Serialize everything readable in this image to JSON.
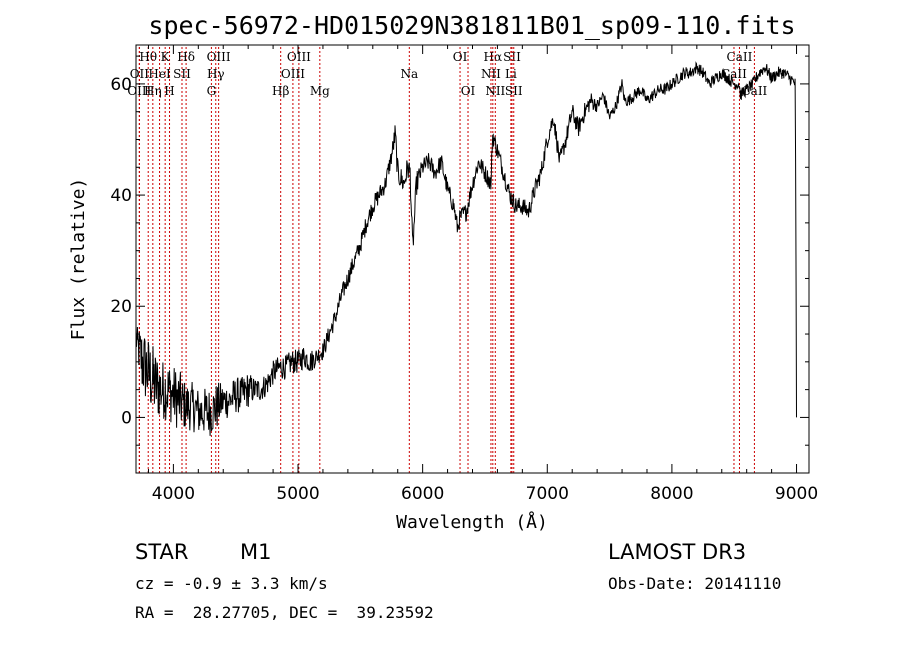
{
  "chart_data": {
    "type": "line",
    "title": "spec-56972-HD015029N381811B01_sp09-110.fits",
    "xlabel": "Wavelength (Å)",
    "ylabel": "Flux (relative)",
    "xlim": [
      3700,
      9100
    ],
    "ylim": [
      -10,
      67
    ],
    "xticks": [
      4000,
      5000,
      6000,
      7000,
      8000,
      9000
    ],
    "yticks": [
      0,
      20,
      40,
      60
    ],
    "grid": false,
    "series": [
      {
        "name": "spectrum",
        "x": [
          3700,
          3750,
          3800,
          3850,
          3900,
          3950,
          4000,
          4050,
          4100,
          4150,
          4200,
          4250,
          4300,
          4350,
          4400,
          4450,
          4500,
          4550,
          4600,
          4650,
          4700,
          4750,
          4800,
          4850,
          4900,
          4950,
          5000,
          5050,
          5100,
          5150,
          5200,
          5250,
          5300,
          5350,
          5400,
          5450,
          5500,
          5550,
          5600,
          5650,
          5700,
          5750,
          5780,
          5800,
          5850,
          5880,
          5900,
          5920,
          5950,
          6000,
          6050,
          6100,
          6150,
          6200,
          6250,
          6280,
          6300,
          6350,
          6400,
          6450,
          6500,
          6550,
          6560,
          6600,
          6650,
          6700,
          6750,
          6800,
          6850,
          6900,
          6950,
          7000,
          7050,
          7100,
          7150,
          7200,
          7250,
          7300,
          7350,
          7400,
          7450,
          7500,
          7550,
          7600,
          7620,
          7650,
          7700,
          7750,
          7800,
          7850,
          7900,
          7950,
          8000,
          8050,
          8100,
          8150,
          8200,
          8250,
          8300,
          8350,
          8400,
          8450,
          8500,
          8540,
          8550,
          8600,
          8650,
          8700,
          8750,
          8800,
          8850,
          8900,
          8950,
          8990,
          9000
        ],
        "y": [
          14,
          10,
          8,
          6,
          5,
          5,
          4,
          3,
          2,
          2,
          1,
          1,
          1,
          2,
          3,
          3,
          4,
          4,
          5,
          5,
          5,
          6,
          8,
          9,
          9,
          10,
          10,
          11,
          10,
          11,
          12,
          15,
          18,
          22,
          25,
          28,
          31,
          35,
          38,
          40,
          42,
          47,
          51,
          44,
          42,
          45,
          44,
          30,
          42,
          45,
          46,
          44,
          46,
          41,
          38,
          34,
          36,
          37,
          42,
          46,
          44,
          42,
          51,
          48,
          44,
          40,
          38,
          38,
          37,
          41,
          44,
          50,
          54,
          46,
          50,
          55,
          52,
          55,
          57,
          56,
          58,
          54,
          56,
          60,
          57,
          57,
          58,
          59,
          57,
          58,
          59,
          59,
          60,
          61,
          62,
          62,
          63,
          62,
          60,
          61,
          62,
          61,
          60,
          60,
          58,
          59,
          60,
          62,
          63,
          61,
          62,
          62,
          61,
          60,
          0
        ],
        "jitter": [
          2,
          6,
          6,
          6,
          5,
          5,
          5,
          5,
          4,
          4,
          4,
          4,
          4,
          4,
          3,
          3,
          3,
          3,
          3,
          2,
          2,
          2,
          2,
          2,
          2,
          2,
          2,
          2,
          2,
          1.5,
          1.5,
          1.5,
          1.5,
          1.5,
          1.5,
          1.5,
          1.5,
          1.5,
          1.5,
          1.5,
          1.5,
          1.5,
          2,
          2,
          2,
          2,
          2,
          2,
          2,
          1.5,
          1.5,
          1.5,
          1.5,
          1.5,
          1.5,
          1.5,
          1.5,
          1.5,
          1.5,
          1.5,
          1.5,
          1.5,
          1.5,
          1.5,
          1.5,
          1.5,
          1.5,
          1.5,
          1.5,
          1.5,
          1.5,
          1.5,
          1.5,
          1.5,
          1.5,
          1.5,
          1.5,
          1.5,
          1.5,
          1,
          1,
          1,
          1,
          1,
          1,
          1,
          1,
          1,
          1,
          1,
          1,
          1,
          1,
          1,
          1,
          1,
          1,
          1,
          1,
          1,
          1,
          1,
          1,
          1,
          1,
          1,
          1,
          1,
          1,
          1,
          1,
          1,
          1,
          1,
          0
        ]
      }
    ],
    "line_marks": [
      {
        "label": "Hθ",
        "x": 3798,
        "row": 1
      },
      {
        "label": "OII",
        "x": 3727,
        "row": 2
      },
      {
        "label": "OIII",
        "x": 3727,
        "row": 3
      },
      {
        "label": "K",
        "x": 3934,
        "row": 1
      },
      {
        "label": "HeI",
        "x": 3889,
        "row": 2
      },
      {
        "label": "Hη",
        "x": 3835,
        "row": 3
      },
      {
        "label": "Hδ",
        "x": 4102,
        "row": 1
      },
      {
        "label": "SII",
        "x": 4069,
        "row": 2
      },
      {
        "label": "H",
        "x": 3969,
        "row": 3
      },
      {
        "label": "OIII",
        "x": 4363,
        "row": 1
      },
      {
        "label": "Hγ",
        "x": 4340,
        "row": 2
      },
      {
        "label": "G",
        "x": 4305,
        "row": 3
      },
      {
        "label": "OIII",
        "x": 5007,
        "row": 1
      },
      {
        "label": "OIII",
        "x": 4959,
        "row": 2
      },
      {
        "label": "Hβ",
        "x": 4861,
        "row": 3
      },
      {
        "label": "Mg",
        "x": 5175,
        "row": 3
      },
      {
        "label": "Na",
        "x": 5893,
        "row": 2
      },
      {
        "label": "OI",
        "x": 6300,
        "row": 1
      },
      {
        "label": "OI",
        "x": 6364,
        "row": 3
      },
      {
        "label": "Hα",
        "x": 6563,
        "row": 1
      },
      {
        "label": "NII",
        "x": 6548,
        "row": 2
      },
      {
        "label": "NII",
        "x": 6583,
        "row": 3
      },
      {
        "label": "SII",
        "x": 6717,
        "row": 1
      },
      {
        "label": "Li",
        "x": 6708,
        "row": 2
      },
      {
        "label": "SII",
        "x": 6731,
        "row": 3
      },
      {
        "label": "CaII",
        "x": 8542,
        "row": 1
      },
      {
        "label": "CaII",
        "x": 8498,
        "row": 2
      },
      {
        "label": "CaII",
        "x": 8662,
        "row": 3
      }
    ]
  },
  "info": {
    "class_label": "STAR",
    "subclass": "M1",
    "survey": "LAMOST DR3",
    "redshift": "cz = -0.9 ± 3.3 km/s",
    "obs_date": "Obs-Date: 20141110",
    "coords": "RA =  28.27705, DEC =  39.23592"
  },
  "colors": {
    "spectrum": "#000000",
    "line_marker": "#cc0000",
    "axis": "#000000"
  }
}
